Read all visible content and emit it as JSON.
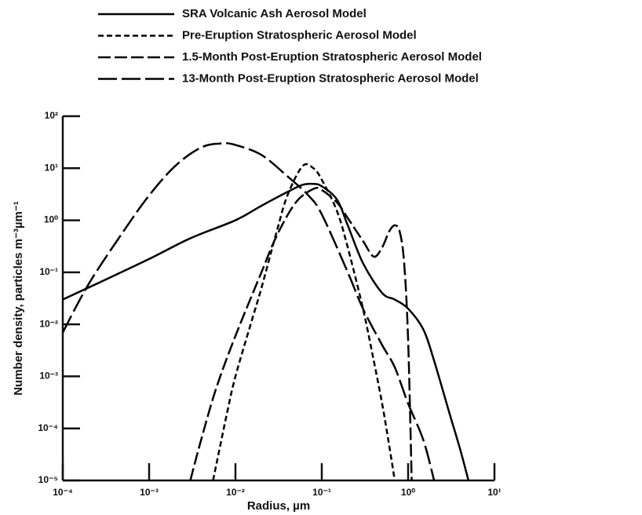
{
  "chart_data": {
    "type": "line",
    "xlabel": "Radius, µm",
    "ylabel": "Number density, particles m⁻³µm⁻¹",
    "xscale": "log",
    "yscale": "log",
    "xlim": [
      0.0001,
      10
    ],
    "ylim": [
      1e-05,
      100
    ],
    "xticks": [
      {
        "value": 0.0001,
        "label": "10⁻⁴"
      },
      {
        "value": 0.001,
        "label": "10⁻³"
      },
      {
        "value": 0.01,
        "label": "10⁻²"
      },
      {
        "value": 0.1,
        "label": "10⁻¹"
      },
      {
        "value": 1,
        "label": "10⁰"
      },
      {
        "value": 10,
        "label": "10¹"
      }
    ],
    "yticks": [
      {
        "value": 1e-05,
        "label": "10⁻⁵"
      },
      {
        "value": 0.0001,
        "label": "10⁻⁴"
      },
      {
        "value": 0.001,
        "label": "10⁻³"
      },
      {
        "value": 0.01,
        "label": "10⁻²"
      },
      {
        "value": 0.1,
        "label": "10⁻¹"
      },
      {
        "value": 1,
        "label": "10⁰"
      },
      {
        "value": 10,
        "label": "10¹"
      },
      {
        "value": 100,
        "label": "10²"
      }
    ],
    "series": [
      {
        "name": "SRA Volcanic Ash Aerosol Model",
        "color": "#000000",
        "line_style": "solid",
        "x": [
          0.0001,
          0.0003,
          0.001,
          0.003,
          0.01,
          0.02,
          0.04,
          0.06,
          0.08,
          0.1,
          0.15,
          0.2,
          0.3,
          0.5,
          0.7,
          1,
          1.5,
          2,
          3,
          4,
          5
        ],
        "values": [
          0.03,
          0.07,
          0.18,
          0.45,
          1.0,
          1.9,
          3.5,
          4.8,
          5,
          4.5,
          2.5,
          0.8,
          0.15,
          0.04,
          0.03,
          0.02,
          0.008,
          0.002,
          0.0002,
          4e-05,
          1e-05
        ]
      },
      {
        "name": "Pre-Eruption Stratospheric Aerosol Model",
        "color": "#000000",
        "line_style": "dashed",
        "x": [
          0.0055,
          0.008,
          0.01,
          0.015,
          0.02,
          0.03,
          0.04,
          0.06,
          0.08,
          0.1,
          0.15,
          0.2,
          0.3,
          0.4,
          0.5,
          0.6,
          0.7
        ],
        "values": [
          1e-05,
          0.0002,
          0.001,
          0.01,
          0.05,
          0.6,
          3,
          11,
          10,
          6,
          1.5,
          0.3,
          0.02,
          0.002,
          0.0003,
          5e-05,
          1e-05
        ]
      },
      {
        "name": "1.5-Month Post-Eruption Stratospheric Aerosol Model",
        "color": "#000000",
        "line_style": "long-dashed",
        "x": [
          0.003,
          0.004,
          0.006,
          0.01,
          0.02,
          0.03,
          0.05,
          0.08,
          0.1,
          0.15,
          0.2,
          0.3,
          0.4,
          0.5,
          0.6,
          0.7,
          0.8,
          0.9,
          1,
          1.1
        ],
        "values": [
          1e-05,
          6e-05,
          0.0006,
          0.006,
          0.1,
          0.5,
          2.2,
          4,
          3.8,
          2.2,
          1.1,
          0.4,
          0.2,
          0.3,
          0.6,
          0.8,
          0.6,
          0.15,
          0.005,
          1e-05
        ]
      },
      {
        "name": "13-Month Post-Eruption Stratospheric Aerosol Model",
        "color": "#000000",
        "line_style": "dash-dash",
        "x": [
          0.0001,
          0.0002,
          0.0005,
          0.001,
          0.002,
          0.004,
          0.007,
          0.01,
          0.02,
          0.04,
          0.07,
          0.1,
          0.2,
          0.3,
          0.5,
          0.7,
          1,
          1.5,
          2
        ],
        "values": [
          0.007,
          0.06,
          0.6,
          3,
          11,
          25,
          30,
          28,
          18,
          7,
          3,
          1.3,
          0.1,
          0.02,
          0.004,
          0.0015,
          0.0003,
          6e-05,
          1e-05
        ]
      }
    ]
  }
}
